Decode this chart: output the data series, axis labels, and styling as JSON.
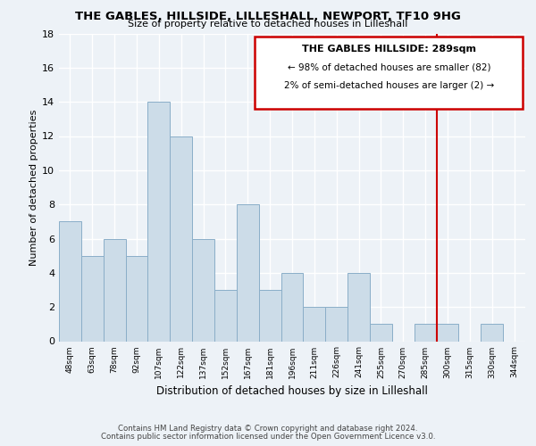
{
  "title": "THE GABLES, HILLSIDE, LILLESHALL, NEWPORT, TF10 9HG",
  "subtitle": "Size of property relative to detached houses in Lilleshall",
  "xlabel": "Distribution of detached houses by size in Lilleshall",
  "ylabel": "Number of detached properties",
  "bin_labels": [
    "48sqm",
    "63sqm",
    "78sqm",
    "92sqm",
    "107sqm",
    "122sqm",
    "137sqm",
    "152sqm",
    "167sqm",
    "181sqm",
    "196sqm",
    "211sqm",
    "226sqm",
    "241sqm",
    "255sqm",
    "270sqm",
    "285sqm",
    "300sqm",
    "315sqm",
    "330sqm",
    "344sqm"
  ],
  "bar_heights": [
    7,
    5,
    6,
    5,
    14,
    12,
    6,
    3,
    8,
    3,
    4,
    2,
    2,
    4,
    1,
    0,
    1,
    1,
    0,
    1,
    0
  ],
  "bar_color": "#ccdce8",
  "bar_edge_color": "#8aaec8",
  "ylim": [
    0,
    18
  ],
  "yticks": [
    0,
    2,
    4,
    6,
    8,
    10,
    12,
    14,
    16,
    18
  ],
  "vline_x_index": 16.5,
  "vline_color": "#cc0000",
  "annotation_title": "THE GABLES HILLSIDE: 289sqm",
  "annotation_line1": "← 98% of detached houses are smaller (82)",
  "annotation_line2": "2% of semi-detached houses are larger (2) →",
  "footnote1": "Contains HM Land Registry data © Crown copyright and database right 2024.",
  "footnote2": "Contains public sector information licensed under the Open Government Licence v3.0.",
  "background_color": "#edf2f7"
}
